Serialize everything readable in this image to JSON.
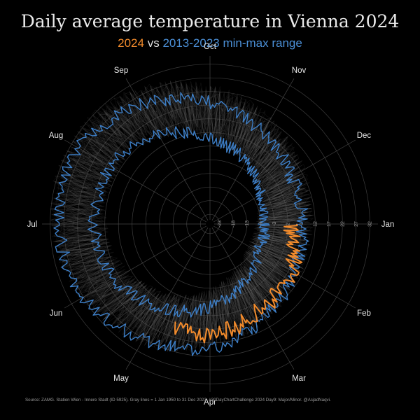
{
  "chart_data": {
    "type": "radial-line",
    "title": "Daily average temperature in Vienna 2024",
    "subtitle": {
      "year_label": "2024",
      "vs_label": "vs",
      "range_label": "2013-2023 min-max range"
    },
    "months": [
      "Jan",
      "Feb",
      "Mar",
      "Apr",
      "May",
      "Jun",
      "Jul",
      "Aug",
      "Sep",
      "Oct",
      "Nov",
      "Dec"
    ],
    "radial_ticks": [
      "-23",
      "-18",
      "-13",
      "-8",
      "-3",
      "2",
      "7",
      "12",
      "17",
      "22",
      "27",
      "32"
    ],
    "radial_range": [
      -25,
      35
    ],
    "series": [
      {
        "name": "2013-2023 max",
        "color": "#3d7fc8",
        "monthly_values": [
          7,
          9,
          13,
          19,
          22,
          27,
          29,
          29,
          24,
          18,
          12,
          8
        ]
      },
      {
        "name": "2013-2023 min",
        "color": "#3d7fc8",
        "monthly_values": [
          -7,
          -6,
          -2,
          4,
          9,
          14,
          16,
          16,
          11,
          5,
          0,
          -5
        ]
      },
      {
        "name": "2024",
        "color": "#f28b2c",
        "monthly_values": [
          3,
          8,
          10,
          14
        ]
      }
    ],
    "background_note": "Gray lines = 1 Jan 1950 to 31 Dec 2023"
  },
  "caption": "Source: ZAMG. Station Wien - Innere Stadt (ID 5925). Gray lines = 1 Jan 1950 to 31 Dec 2023. #30DayChartChallenge 2024 Day9: Major/Minor. @AsjadNaqvi.",
  "colors": {
    "background": "#000000",
    "highlight": "#f28b2c",
    "range": "#3d7fc8",
    "grid": "#555555",
    "history": "#8a8a8a"
  }
}
